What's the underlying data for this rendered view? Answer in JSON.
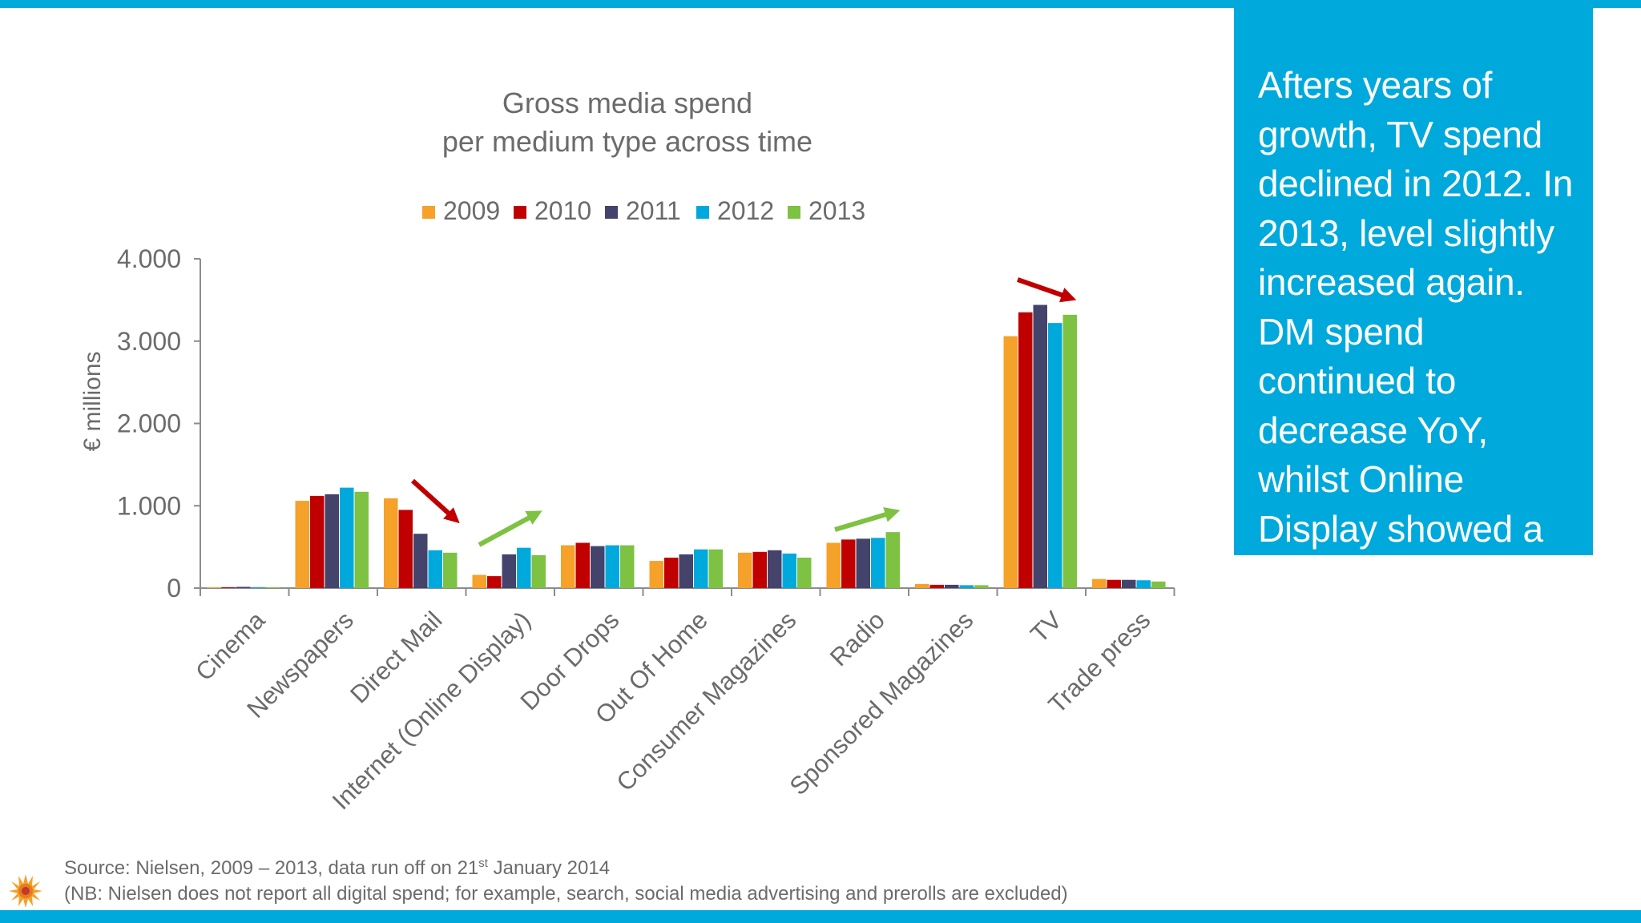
{
  "callout": {
    "text": "Afters years of growth, TV spend declined in 2012. In 2013, level slightly increased again. DM spend continued to decrease YoY, whilst Online Display showed a strong increase."
  },
  "source": {
    "line1_prefix": "Source: Nielsen, 2009 – 2013, data run off on 21",
    "line1_sup": "st",
    "line1_suffix": " January 2014",
    "line2": "(NB: Nielsen does not report all digital spend; for example, search, social media advertising and prerolls are excluded)"
  },
  "colors": {
    "accent": "#00a9dc",
    "arrow_down": "#c00000",
    "arrow_up": "#7dc242"
  },
  "chart_data": {
    "type": "bar",
    "title": [
      "Gross media spend",
      "per medium type across time"
    ],
    "ylabel": "€ millions",
    "xlabel": "",
    "ylim": [
      0,
      4000
    ],
    "yticks": [
      {
        "value": 0,
        "label": "0"
      },
      {
        "value": 1000,
        "label": "1.000"
      },
      {
        "value": 2000,
        "label": "2.000"
      },
      {
        "value": 3000,
        "label": "3.000"
      },
      {
        "value": 4000,
        "label": "4.000"
      }
    ],
    "legend_position": "top",
    "grid": false,
    "categories": [
      "Cinema",
      "Newspapers",
      "Direct Mail",
      "Internet (Online Display)",
      "Door Drops",
      "Out Of Home",
      "Consumer Magazines",
      "Radio",
      "Sponsored Magazines",
      "TV",
      "Trade press"
    ],
    "series": [
      {
        "name": "2009",
        "color": "#f5a12a",
        "values": [
          10,
          1060,
          1090,
          160,
          520,
          330,
          430,
          550,
          50,
          3060,
          110
        ]
      },
      {
        "name": "2010",
        "color": "#c00000",
        "values": [
          10,
          1120,
          950,
          145,
          550,
          370,
          440,
          590,
          40,
          3350,
          100
        ]
      },
      {
        "name": "2011",
        "color": "#44436b",
        "values": [
          15,
          1140,
          660,
          410,
          510,
          410,
          460,
          600,
          40,
          3440,
          100
        ]
      },
      {
        "name": "2012",
        "color": "#00a9dc",
        "values": [
          10,
          1220,
          460,
          490,
          520,
          470,
          420,
          610,
          35,
          3220,
          95
        ]
      },
      {
        "name": "2013",
        "color": "#7dc242",
        "values": [
          10,
          1170,
          430,
          400,
          520,
          470,
          370,
          680,
          35,
          3320,
          80
        ]
      }
    ],
    "annotations": [
      {
        "type": "arrow",
        "direction": "down",
        "category": "Direct Mail"
      },
      {
        "type": "arrow",
        "direction": "up",
        "category": "Internet (Online Display)"
      },
      {
        "type": "arrow",
        "direction": "up",
        "category": "Radio"
      },
      {
        "type": "arrow",
        "direction": "down",
        "category": "TV"
      }
    ]
  }
}
